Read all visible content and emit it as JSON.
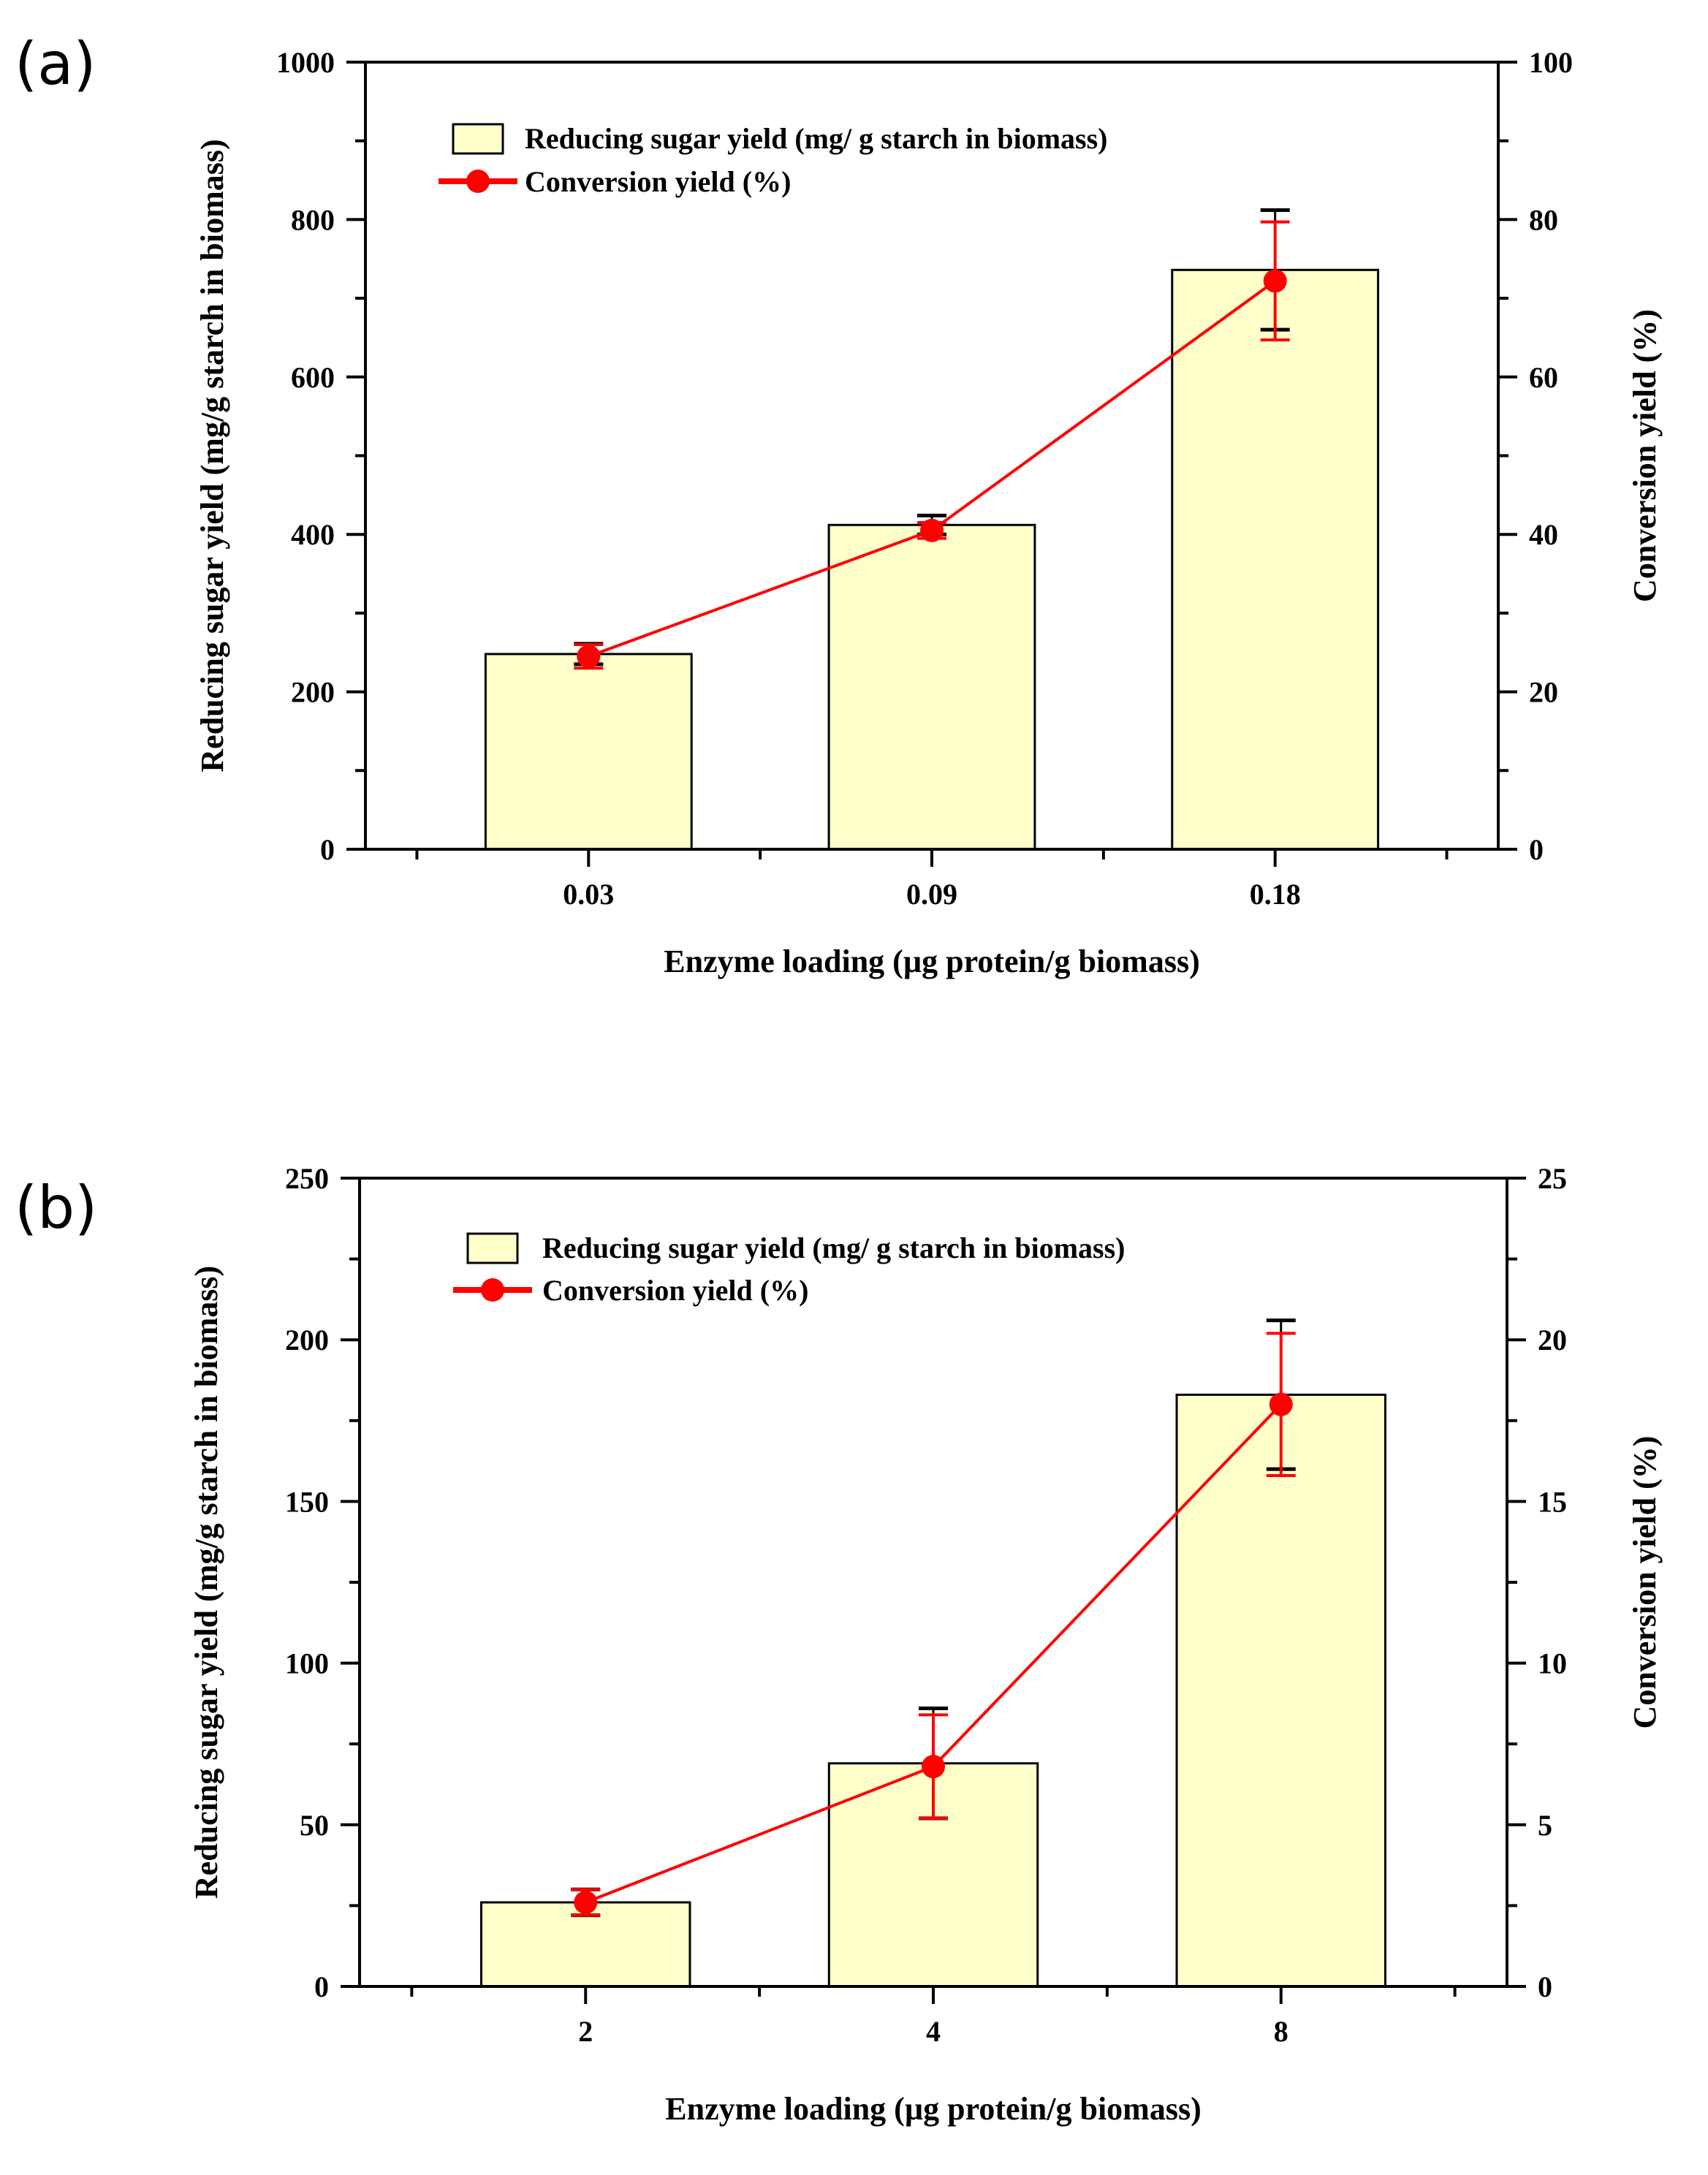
{
  "figure": {
    "panels": [
      "(a)",
      "(b)"
    ]
  },
  "chart_data": [
    {
      "type": "bar",
      "panel_label": "(a)",
      "categories": [
        "0.03",
        "0.09",
        "0.18"
      ],
      "xlabel": "Enzyme loading (µg protein/g biomass)",
      "ylabel": "Reducing sugar yield (mg/g starch in biomass)",
      "y2label": "Conversion yield (%)",
      "ylim": [
        0,
        1000
      ],
      "y2lim": [
        0,
        100
      ],
      "yticks": [
        0,
        200,
        400,
        600,
        800,
        1000
      ],
      "y2ticks": [
        0,
        20,
        40,
        60,
        80,
        100
      ],
      "series": [
        {
          "name": "Reducing sugar yield  (mg/ g starch in biomass)",
          "kind": "bar",
          "axis": "left",
          "values": [
            248,
            412,
            736
          ],
          "errors": [
            13,
            12,
            76
          ],
          "color": "#FFFFCC"
        },
        {
          "name": "Conversion yield (%)",
          "kind": "line",
          "axis": "right",
          "values": [
            24.5,
            40.5,
            72.2
          ],
          "errors": [
            1.5,
            1.0,
            7.5
          ],
          "color": "#FF0000"
        }
      ]
    },
    {
      "type": "bar",
      "panel_label": "(b)",
      "categories": [
        "2",
        "4",
        "8"
      ],
      "xlabel": "Enzyme loading (µg protein/g biomass)",
      "ylabel": "Reducing sugar yield (mg/g starch in biomass)",
      "y2label": "Conversion yield (%)",
      "ylim": [
        0,
        250
      ],
      "y2lim": [
        0,
        25
      ],
      "yticks": [
        0,
        50,
        100,
        150,
        200,
        250
      ],
      "y2ticks": [
        0,
        5,
        10,
        15,
        20,
        25
      ],
      "series": [
        {
          "name": "Reducing sugar yield  (mg/ g starch in biomass)",
          "kind": "bar",
          "axis": "left",
          "values": [
            26,
            69,
            183
          ],
          "errors": [
            4,
            17,
            23
          ],
          "color": "#FFFFCC"
        },
        {
          "name": "Conversion yield (%)",
          "kind": "line",
          "axis": "right",
          "values": [
            2.6,
            6.8,
            18.0
          ],
          "errors": [
            0.4,
            1.6,
            2.2
          ],
          "color": "#FF0000"
        }
      ]
    }
  ]
}
